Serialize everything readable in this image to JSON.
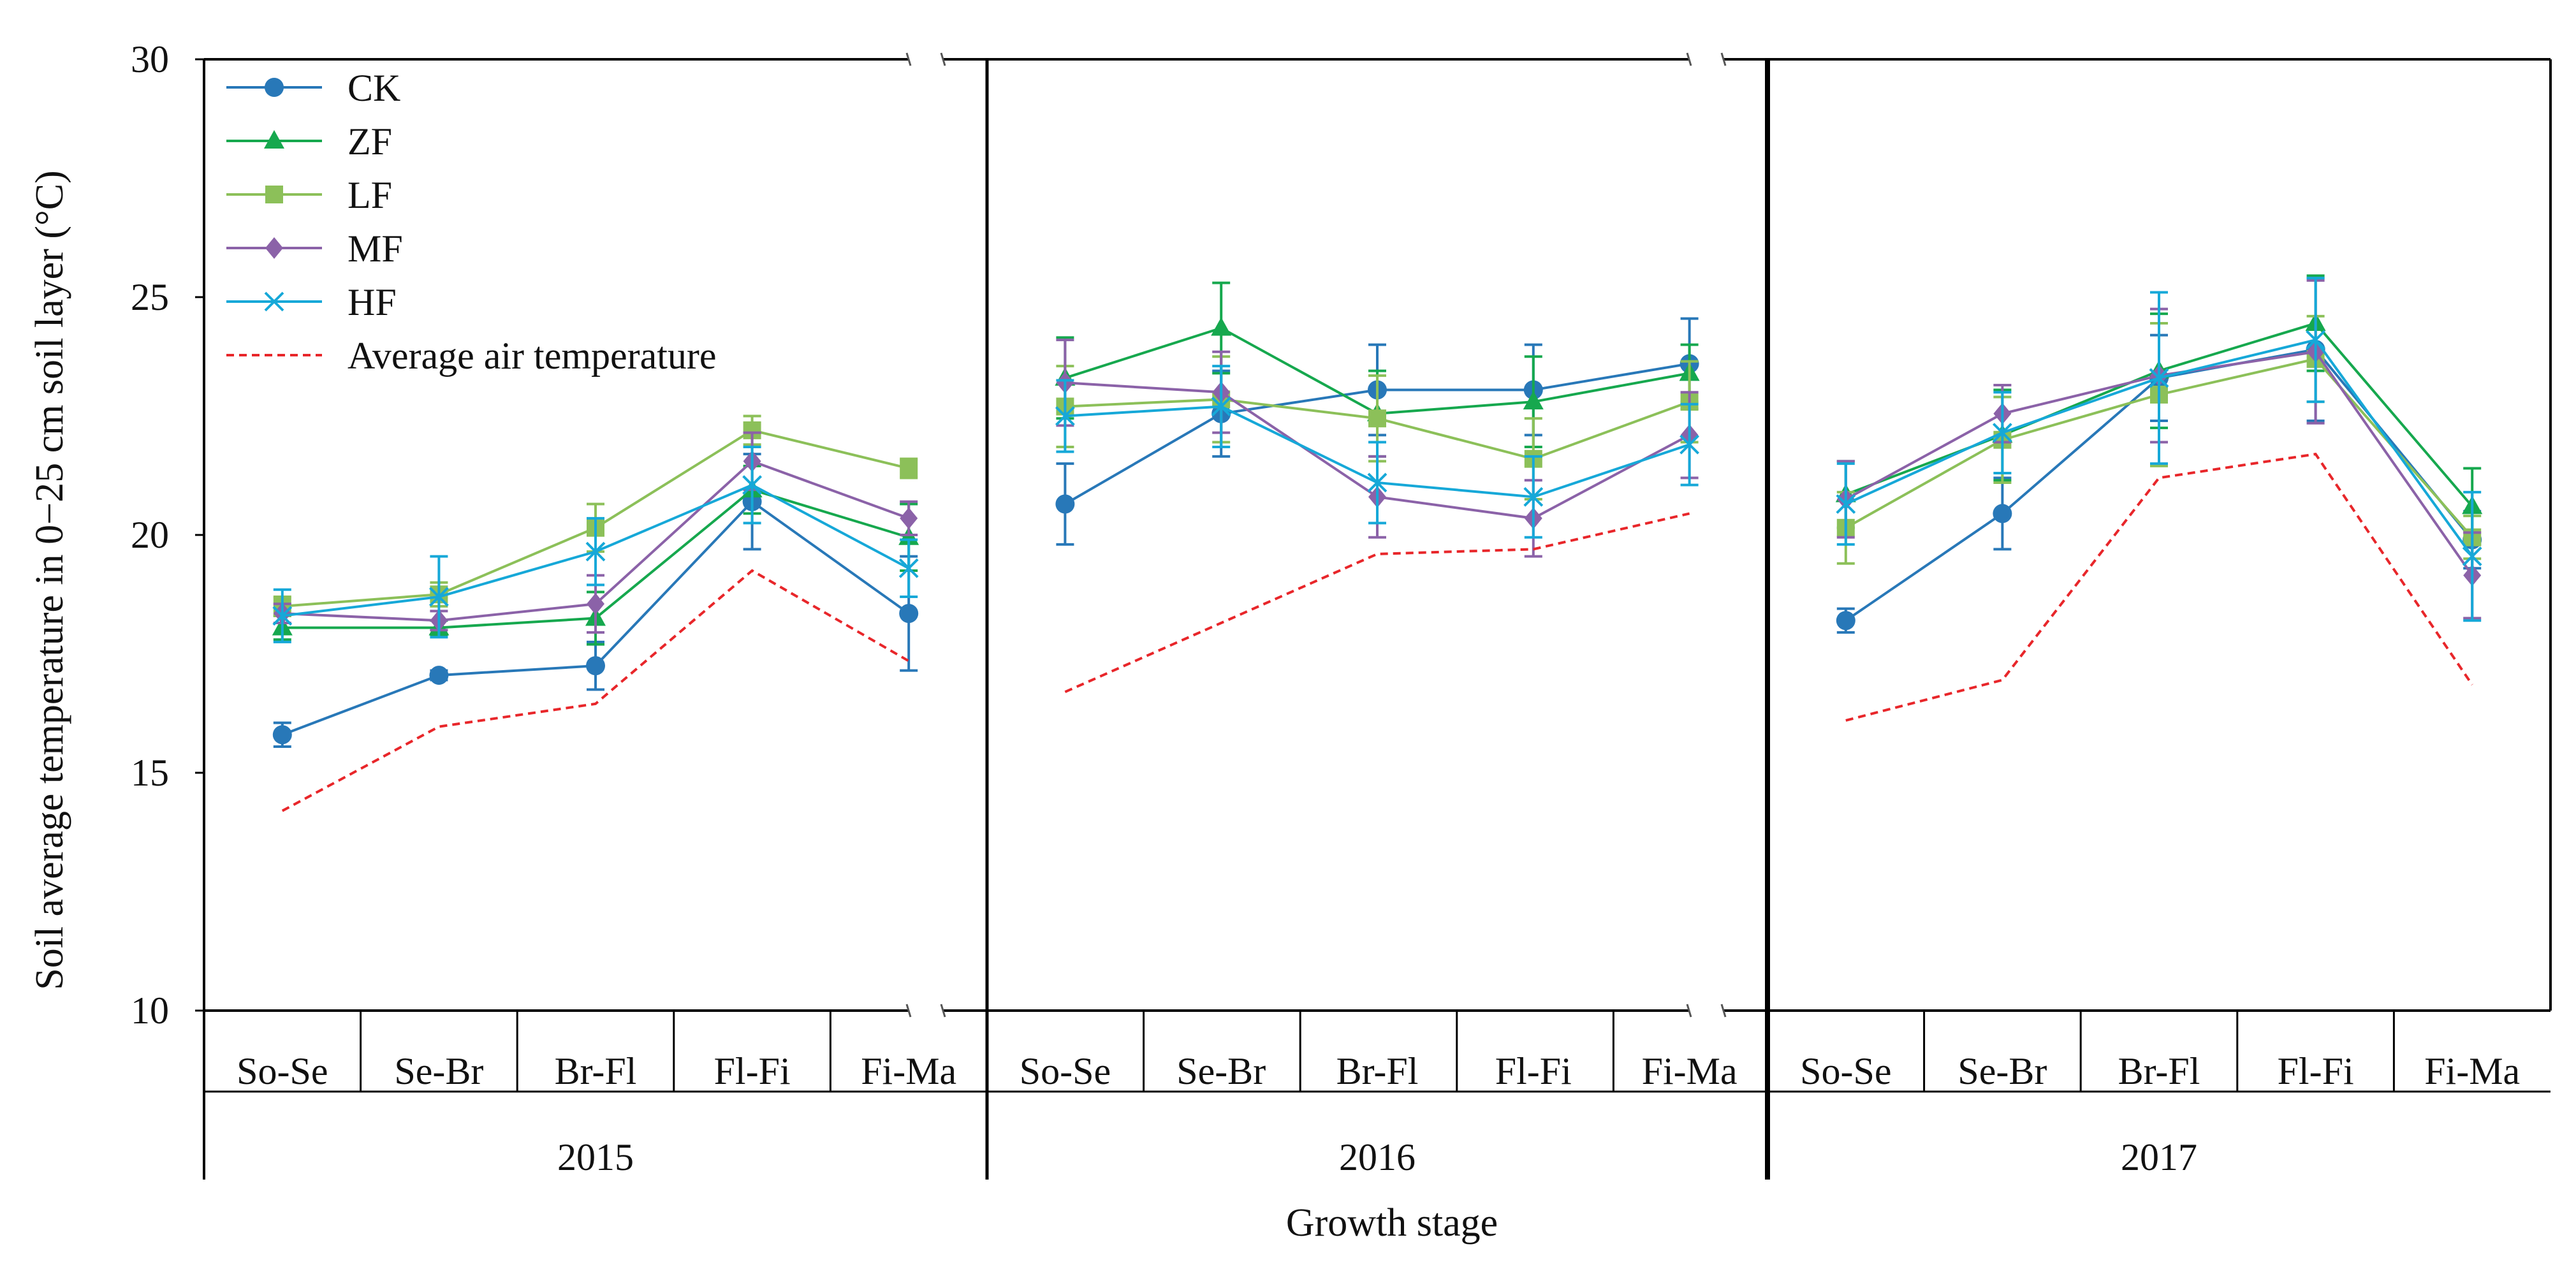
{
  "chart_data": {
    "type": "line",
    "ylabel": "Soil  average  temperature  in  0−25 cm  soil layer  (°C)",
    "xlabel": "Growth  stage",
    "ylim": [
      10,
      30
    ],
    "yticks": [
      10,
      15,
      20,
      25,
      30
    ],
    "stages": [
      "So-Se",
      "Se-Br",
      "Br-Fl",
      "Fl-Fi",
      "Fi-Ma"
    ],
    "years": [
      "2015",
      "2016",
      "2017"
    ],
    "legend_position": "top-left",
    "series": [
      {
        "name": "CK",
        "color": "#2878b8",
        "marker": "circle",
        "values": [
          [
            15.8,
            17.05,
            17.25,
            20.7,
            18.35
          ],
          [
            20.65,
            22.55,
            23.05,
            23.05,
            23.6
          ],
          [
            18.2,
            20.45,
            23.3,
            23.9,
            19.9
          ]
        ],
        "errors": [
          [
            0.25,
            0.1,
            0.5,
            1.0,
            1.2
          ],
          [
            0.85,
            0.9,
            0.95,
            0.95,
            0.95
          ],
          [
            0.25,
            0.75,
            0.9,
            1.5,
            0.6
          ]
        ]
      },
      {
        "name": "ZF",
        "color": "#16a84e",
        "marker": "triangle",
        "values": [
          [
            18.05,
            18.05,
            18.25,
            20.95,
            19.95
          ],
          [
            23.3,
            24.35,
            22.55,
            22.8,
            23.4
          ],
          [
            20.85,
            22.1,
            23.45,
            24.45,
            20.6
          ]
        ],
        "errors": [
          [
            0.25,
            0.15,
            0.55,
            0.5,
            0.7
          ],
          [
            0.85,
            0.95,
            0.9,
            0.95,
            0.6
          ],
          [
            0.7,
            0.95,
            1.2,
            1.0,
            0.8
          ]
        ]
      },
      {
        "name": "LF",
        "color": "#8cc059",
        "marker": "square",
        "values": [
          [
            18.5,
            18.75,
            20.15,
            22.2,
            21.4
          ],
          [
            22.7,
            22.85,
            22.45,
            21.6,
            22.8
          ],
          [
            20.15,
            22.0,
            22.95,
            23.7,
            19.95
          ]
        ],
        "errors": [
          [
            0.2,
            0.25,
            0.5,
            0.3,
            0.2
          ],
          [
            0.85,
            0.9,
            0.9,
            0.85,
            0.85
          ],
          [
            0.75,
            0.9,
            1.5,
            0.9,
            0.45
          ]
        ]
      },
      {
        "name": "MF",
        "color": "#8b62a8",
        "marker": "diamond",
        "values": [
          [
            18.35,
            18.2,
            18.55,
            21.55,
            20.35
          ],
          [
            23.2,
            23.0,
            20.8,
            20.35,
            22.1
          ],
          [
            20.75,
            22.55,
            23.35,
            23.85,
            19.15
          ]
        ],
        "errors": [
          [
            0.2,
            0.2,
            0.6,
            0.6,
            0.35
          ],
          [
            0.9,
            0.85,
            0.85,
            0.8,
            0.9
          ],
          [
            0.8,
            0.6,
            1.4,
            1.5,
            0.9
          ]
        ]
      },
      {
        "name": "HF",
        "color": "#16a8d8",
        "marker": "x",
        "values": [
          [
            18.3,
            18.7,
            19.65,
            21.05,
            19.3
          ],
          [
            22.5,
            22.7,
            21.1,
            20.8,
            21.9
          ],
          [
            20.65,
            22.15,
            23.3,
            24.1,
            19.55
          ]
        ],
        "errors": [
          [
            0.55,
            0.85,
            0.7,
            0.8,
            0.6
          ],
          [
            0.75,
            0.85,
            0.85,
            0.85,
            0.85
          ],
          [
            0.85,
            0.85,
            1.8,
            1.3,
            1.35
          ]
        ]
      },
      {
        "name": "Average air temperature",
        "color": "#e8262a",
        "marker": "none",
        "dashed": true,
        "values": [
          [
            14.2,
            15.97,
            16.45,
            19.25,
            17.35
          ],
          [
            16.7,
            null,
            19.6,
            19.7,
            20.45
          ],
          [
            16.1,
            16.95,
            21.2,
            21.7,
            16.85
          ]
        ]
      }
    ]
  }
}
